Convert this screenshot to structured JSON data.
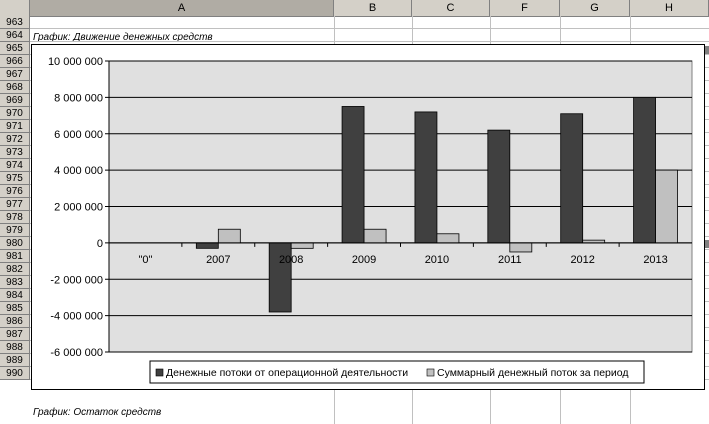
{
  "sheet": {
    "columns": [
      {
        "label": "A",
        "selected": true
      },
      {
        "label": "B",
        "selected": false
      },
      {
        "label": "C",
        "selected": false
      },
      {
        "label": "F",
        "selected": false
      },
      {
        "label": "G",
        "selected": false
      },
      {
        "label": "H",
        "selected": false
      }
    ],
    "rows": [
      "963",
      "964",
      "965",
      "966",
      "967",
      "968",
      "969",
      "970",
      "971",
      "972",
      "973",
      "974",
      "975",
      "976",
      "977",
      "978",
      "979",
      "980",
      "981",
      "982",
      "983",
      "984",
      "985",
      "986",
      "987",
      "988",
      "989",
      "990"
    ],
    "cells": {
      "title_964": "График: Движение денежных средств",
      "title_989": "График: Остаток средств"
    }
  },
  "chart_data": {
    "type": "bar",
    "categories": [
      "\"0\"",
      "2007",
      "2008",
      "2009",
      "2010",
      "2011",
      "2012",
      "2013"
    ],
    "series": [
      {
        "name": "Денежные потоки от операционной деятельности",
        "color": "#404040",
        "values": [
          0,
          -300000,
          -3800000,
          7500000,
          7200000,
          6200000,
          7100000,
          8000000
        ]
      },
      {
        "name": "Суммарный денежный поток за период",
        "color": "#c0c0c0",
        "values": [
          0,
          750000,
          -300000,
          750000,
          500000,
          -500000,
          150000,
          4000000
        ]
      }
    ],
    "ylim": [
      -6000000,
      10000000
    ],
    "yticks": [
      {
        "value": 10000000,
        "label": "10 000 000"
      },
      {
        "value": 8000000,
        "label": "8 000 000"
      },
      {
        "value": 6000000,
        "label": "6 000 000"
      },
      {
        "value": 4000000,
        "label": "4 000 000"
      },
      {
        "value": 2000000,
        "label": "2 000 000"
      },
      {
        "value": 0,
        "label": "0"
      },
      {
        "value": -2000000,
        "label": "-2 000 000"
      },
      {
        "value": -4000000,
        "label": "-4 000 000"
      },
      {
        "value": -6000000,
        "label": "-6 000 000"
      }
    ],
    "grid": true,
    "plot_background": "#e0e0e0",
    "legend_position": "bottom"
  }
}
